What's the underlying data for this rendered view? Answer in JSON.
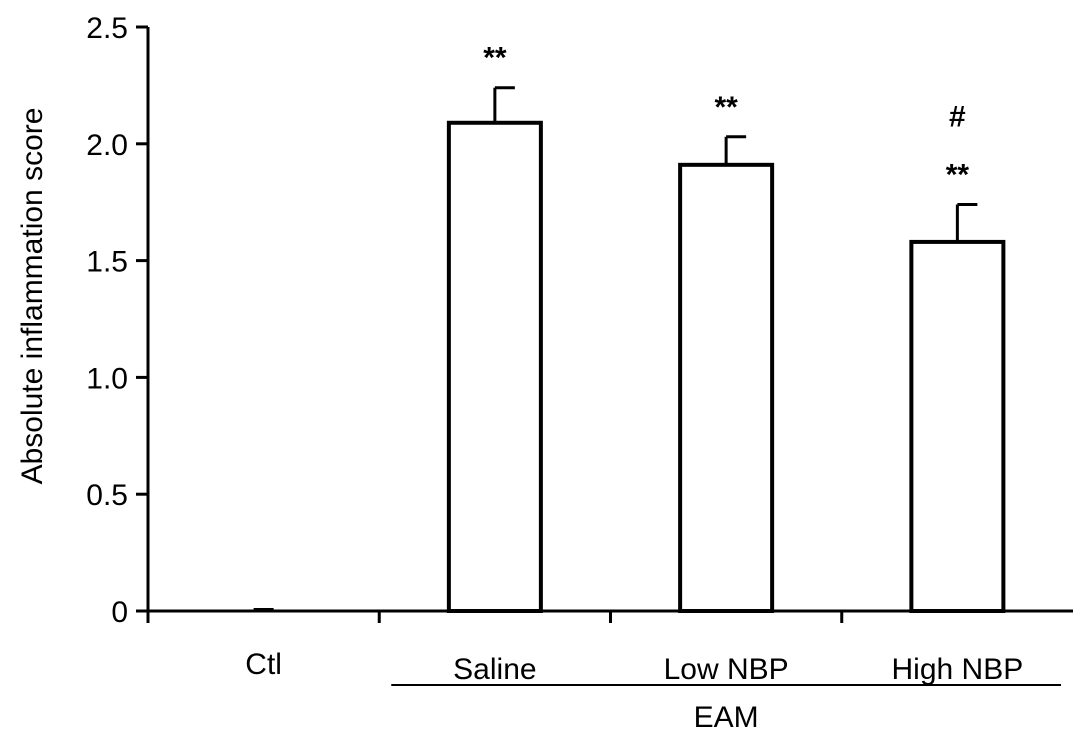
{
  "chart_data": {
    "type": "bar",
    "ylabel": "Absolute inflammation score",
    "ylim": [
      0,
      2.5
    ],
    "yticks": [
      0,
      0.5,
      1.0,
      1.5,
      2.0,
      2.5
    ],
    "ytick_labels": [
      "0",
      "0.5",
      "1.0",
      "1.5",
      "2.0",
      "2.5"
    ],
    "categories": [
      "Ctl",
      "Saline",
      "Low NBP",
      "High NBP"
    ],
    "values": [
      0,
      2.09,
      1.91,
      1.58
    ],
    "errors": [
      0,
      0.15,
      0.12,
      0.16
    ],
    "annotations": [
      [],
      [
        "**"
      ],
      [
        "**"
      ],
      [
        "**",
        "#"
      ]
    ],
    "group_label": "EAM",
    "group_members": [
      "Saline",
      "Low NBP",
      "High NBP"
    ],
    "bar_fill": "#ffffff",
    "bar_stroke": "#000000",
    "grid": false
  }
}
